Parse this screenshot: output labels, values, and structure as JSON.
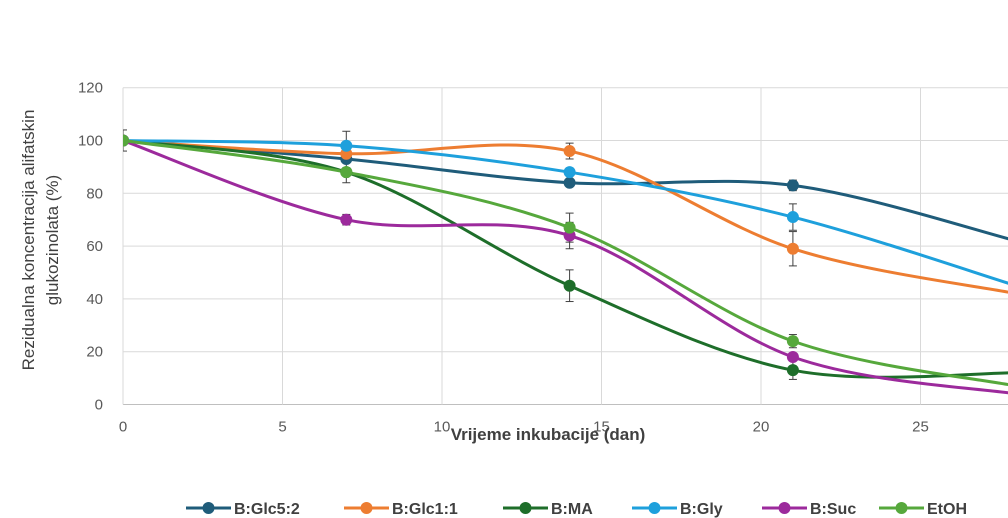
{
  "chart_data": {
    "type": "line",
    "title": "",
    "xlabel": "Vrijeme inkubacije (dan)",
    "ylabel_lines": [
      "Rezidualna  koncentracija alifatskin",
      "glukozinolata (%)"
    ],
    "xlim": [
      0,
      28
    ],
    "ylim": [
      0,
      120
    ],
    "x_ticks": [
      0,
      5,
      10,
      15,
      20,
      25
    ],
    "y_ticks": [
      0,
      20,
      40,
      60,
      80,
      100,
      120
    ],
    "grid": true,
    "legend_position": "bottom",
    "smooth": true,
    "x": [
      0,
      7,
      14,
      21,
      28
    ],
    "series": [
      {
        "name": "B:Glc5:2",
        "color": "#1f5c7a",
        "values": [
          100,
          93,
          84,
          83,
          62
        ],
        "errors": [
          0,
          0,
          0,
          2,
          0
        ]
      },
      {
        "name": "B:Glc1:1",
        "color": "#ed7d31",
        "values": [
          100,
          95,
          96,
          59,
          42
        ],
        "errors": [
          0,
          0,
          3,
          6.5,
          0
        ]
      },
      {
        "name": "B:MA",
        "color": "#1e6e2a",
        "values": [
          100,
          88,
          45,
          13,
          12
        ],
        "errors": [
          0,
          0,
          6,
          3.5,
          0
        ]
      },
      {
        "name": "B:Gly",
        "color": "#1ea0dc",
        "values": [
          100,
          98,
          88,
          71,
          45
        ],
        "errors": [
          0,
          5.5,
          0,
          5,
          0
        ]
      },
      {
        "name": "B:Suc",
        "color": "#9c2a9c",
        "values": [
          100,
          70,
          64,
          18,
          4
        ],
        "errors": [
          0,
          2,
          5,
          0,
          0
        ]
      },
      {
        "name": "EtOH",
        "color": "#56a83c",
        "values": [
          100,
          88,
          67,
          24,
          7
        ],
        "errors": [
          4,
          4,
          5.5,
          2.5,
          0
        ]
      }
    ]
  }
}
